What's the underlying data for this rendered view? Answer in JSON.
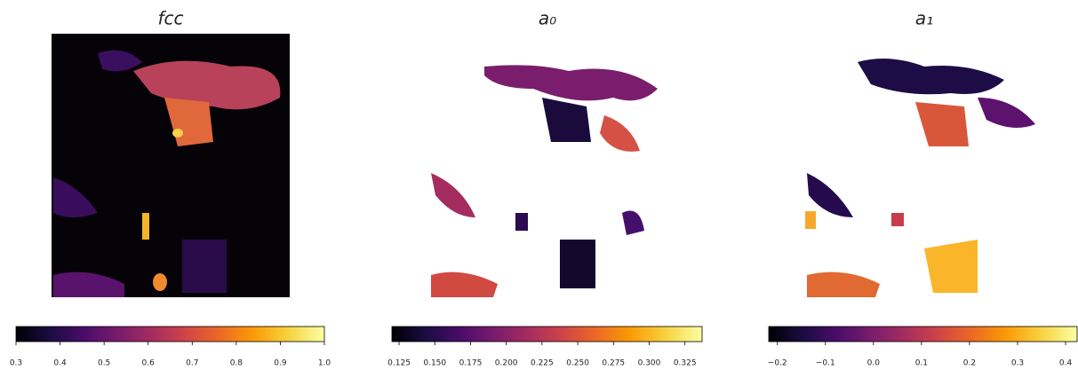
{
  "chart_data": [
    {
      "type": "heatmap",
      "title": "fcc",
      "colormap": "inferno",
      "clim": [
        0.3,
        1.0
      ],
      "cticks": [
        0.3,
        0.4,
        0.5,
        0.6,
        0.7,
        0.8,
        0.9,
        {
          "value": 1.0,
          "label": "1.0"
        }
      ]
    },
    {
      "type": "heatmap",
      "title": "a₀",
      "colormap": "inferno",
      "clim": [
        0.12,
        0.337
      ],
      "cticks": [
        0.125,
        {
          "value": 0.15,
          "label": "0.150"
        },
        0.175,
        {
          "value": 0.2,
          "label": "0.200"
        },
        0.225,
        {
          "value": 0.25,
          "label": "0.250"
        },
        0.275,
        {
          "value": 0.3,
          "label": "0.300"
        },
        0.325
      ]
    },
    {
      "type": "heatmap",
      "title": "a₁",
      "colormap": "inferno",
      "clim": [
        -0.218,
        0.424
      ],
      "cticks": [
        {
          "value": -0.2,
          "label": "−0.2"
        },
        {
          "value": -0.1,
          "label": "−0.1"
        },
        {
          "value": 0.0,
          "label": "0.0"
        },
        0.1,
        0.2,
        0.3,
        0.4
      ]
    }
  ]
}
